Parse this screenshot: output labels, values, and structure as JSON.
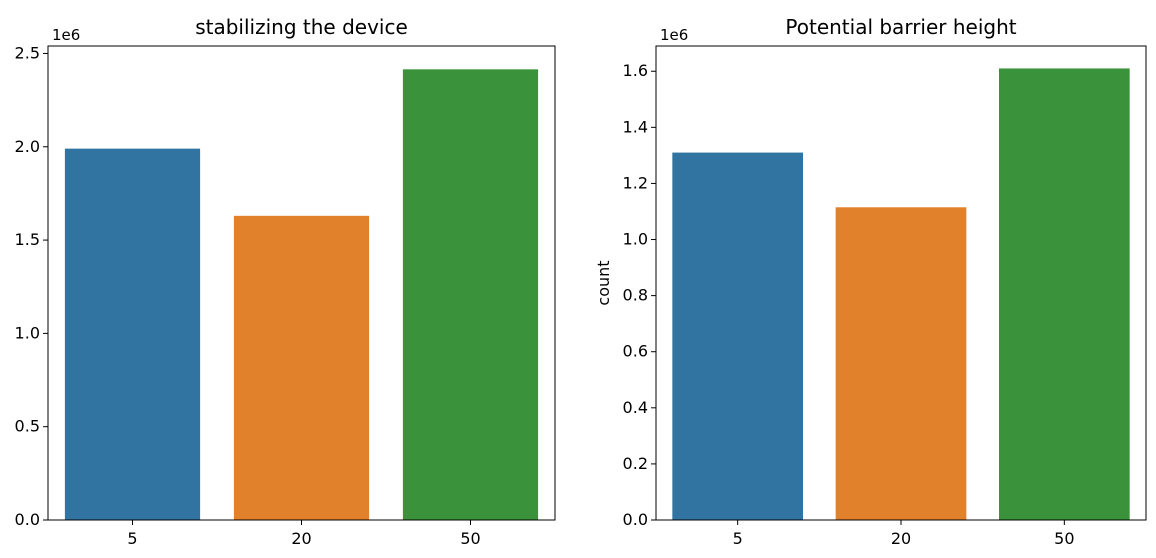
{
  "chart_data": [
    {
      "type": "bar",
      "title": "stabilizing the device",
      "xlabel": "",
      "ylabel": "",
      "categories": [
        "5",
        "20",
        "50"
      ],
      "values": [
        1990000,
        1630000,
        2415000
      ],
      "colors": [
        "#3274a1",
        "#e1812c",
        "#3a923a"
      ],
      "ylim": [
        0,
        2540000
      ],
      "yticks": [
        0,
        500000,
        1000000,
        1500000,
        2000000,
        2500000
      ],
      "ytick_labels": [
        "0.0",
        "0.5",
        "1.0",
        "1.5",
        "2.0",
        "2.5"
      ],
      "offset_text": "1e6",
      "grid": false
    },
    {
      "type": "bar",
      "title": "Potential barrier height",
      "xlabel": "",
      "ylabel": "count",
      "categories": [
        "5",
        "20",
        "50"
      ],
      "values": [
        1310000,
        1115000,
        1610000
      ],
      "colors": [
        "#3274a1",
        "#e1812c",
        "#3a923a"
      ],
      "ylim": [
        0,
        1690000
      ],
      "yticks": [
        0,
        200000,
        400000,
        600000,
        800000,
        1000000,
        1200000,
        1400000,
        1600000
      ],
      "ytick_labels": [
        "0.0",
        "0.2",
        "0.4",
        "0.6",
        "0.8",
        "1.0",
        "1.2",
        "1.4",
        "1.6"
      ],
      "offset_text": "1e6",
      "grid": false
    }
  ]
}
